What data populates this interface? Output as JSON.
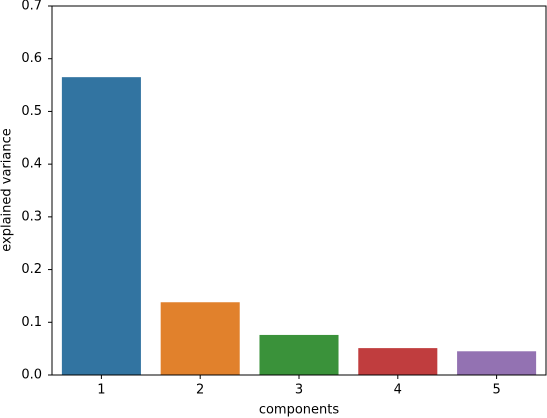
{
  "chart_data": {
    "type": "bar",
    "x_label": "components",
    "y_label": "explained variance",
    "categories": [
      "1",
      "2",
      "3",
      "4",
      "5"
    ],
    "values": [
      0.565,
      0.138,
      0.076,
      0.051,
      0.045
    ],
    "colors": [
      "#3274a1",
      "#e1812c",
      "#3a923a",
      "#c03d3e",
      "#9372b2"
    ],
    "ylim": [
      0,
      0.7
    ],
    "yticks": [
      {
        "value": 0,
        "label": "0.0"
      },
      0.1,
      0.2,
      0.3,
      0.4,
      0.5,
      0.6,
      0.7
    ]
  }
}
